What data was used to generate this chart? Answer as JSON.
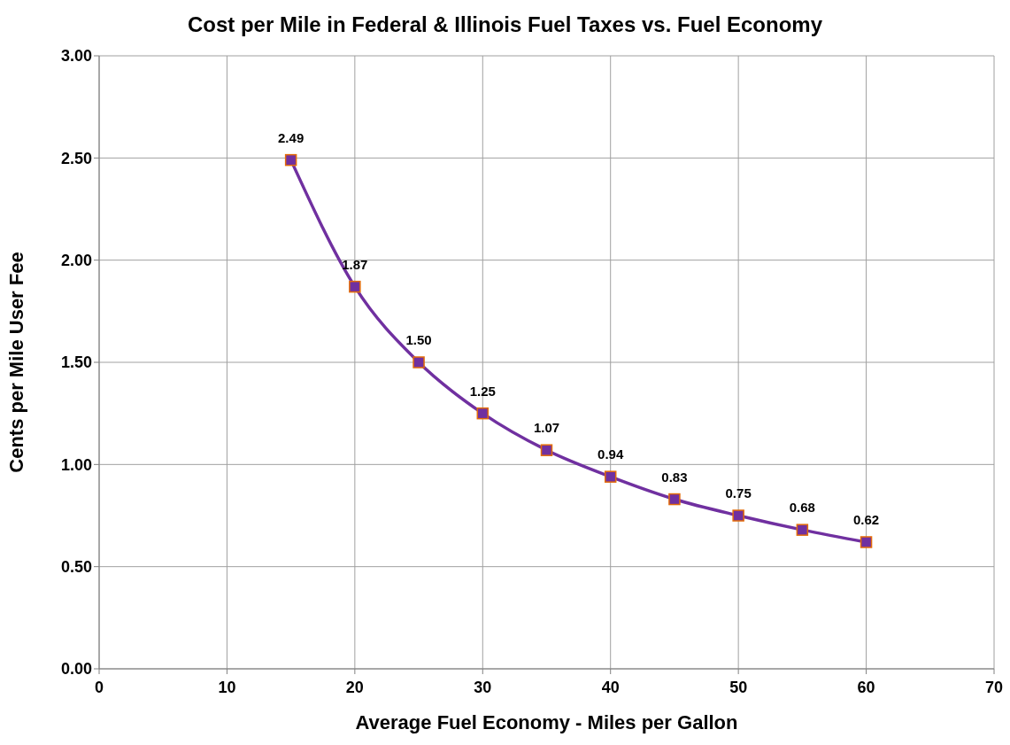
{
  "chart_data": {
    "type": "line",
    "title": "Cost per Mile in Federal & Illinois Fuel Taxes vs. Fuel Economy",
    "xlabel": "Average Fuel Economy - Miles per Gallon",
    "ylabel": "Cents per Mile User Fee",
    "x": [
      15,
      20,
      25,
      30,
      35,
      40,
      45,
      50,
      55,
      60
    ],
    "series": [
      {
        "color": "#7030a0",
        "values": [
          2.49,
          1.87,
          1.5,
          1.25,
          1.07,
          0.94,
          0.83,
          0.75,
          0.68,
          0.62
        ],
        "value_labels": [
          "2.49",
          "1.87",
          "1.50",
          "1.25",
          "1.07",
          "0.94",
          "0.83",
          "0.75",
          "0.68",
          "0.62"
        ]
      }
    ],
    "xlim": [
      0,
      70
    ],
    "xticks": [
      0,
      10,
      20,
      30,
      40,
      50,
      60,
      70
    ],
    "ylim": [
      0,
      3
    ],
    "yticks": [
      {
        "value": 0,
        "label": "0.00"
      },
      {
        "value": 0.5,
        "label": "0.50"
      },
      {
        "value": 1,
        "label": "1.00"
      },
      {
        "value": 1.5,
        "label": "1.50"
      },
      {
        "value": 2,
        "label": "2.00"
      },
      {
        "value": 2.5,
        "label": "2.50"
      },
      {
        "value": 3,
        "label": "3.00"
      }
    ],
    "grid": true,
    "marker": "square",
    "line_style": "solid"
  }
}
